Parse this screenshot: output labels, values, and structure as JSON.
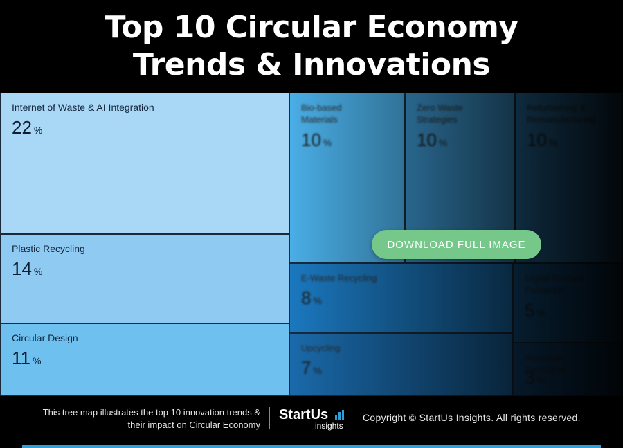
{
  "title": {
    "line1": "Top 10 Circular Economy",
    "line2": "Trends & Innovations"
  },
  "chart_data": {
    "type": "treemap",
    "unit": "%",
    "items": [
      {
        "label": "Internet of Waste & AI Integration",
        "value": 22,
        "color": "#a9d7f6"
      },
      {
        "label": "Plastic Recycling",
        "value": 14,
        "color": "#8fcaf2"
      },
      {
        "label": "Circular Design",
        "value": 11,
        "color": "#6ec0ee"
      },
      {
        "label": "Bio-based Materials",
        "value": 10,
        "color": "#4aaee6"
      },
      {
        "label": "Zero Waste Strategies",
        "value": 10,
        "color": "#3e9cd7"
      },
      {
        "label": "Refurbishing & Remanufacturing",
        "value": 10,
        "color": "#2d86c4"
      },
      {
        "label": "E-Waste Recycling",
        "value": 8,
        "color": "#1b78bf"
      },
      {
        "label": "Upcycling",
        "value": 7,
        "color": "#1a6aab"
      },
      {
        "label": "Digital Product Passports",
        "value": 5,
        "color": "#145a92"
      },
      {
        "label": "Reusable Packaging",
        "value": 3,
        "color": "#114c7e"
      }
    ]
  },
  "download_label": "DOWNLOAD FULL IMAGE",
  "footer": {
    "description_line1": "This tree map illustrates the top 10 innovation trends &",
    "description_line2": "their impact on Circular Economy",
    "logo_main": "StartUs",
    "logo_sub": "insights",
    "copyright": "Copyright © StartUs Insights. All rights reserved."
  }
}
